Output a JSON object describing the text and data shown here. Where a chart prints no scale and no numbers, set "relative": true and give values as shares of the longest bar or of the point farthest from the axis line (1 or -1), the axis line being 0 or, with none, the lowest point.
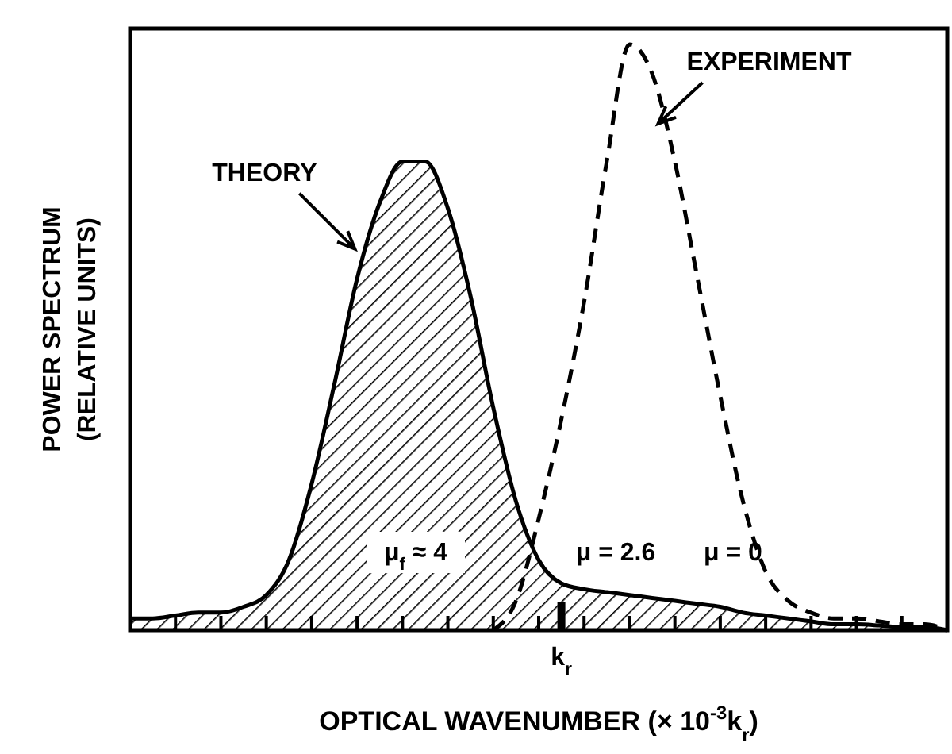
{
  "chart_data": {
    "type": "area",
    "relative": true,
    "xlabel": "OPTICAL WAVENUMBER (× 10$^{-3}$k$_{r}$)",
    "ylabel": "POWER SPECTRUM\n(RELATIVE UNITS)",
    "categories": [
      null,
      null,
      null,
      null,
      null,
      null,
      null,
      null,
      null,
      null,
      null,
      null,
      null,
      null,
      null,
      null,
      null,
      null,
      null,
      null,
      null,
      null,
      null,
      null,
      null,
      null,
      null,
      null,
      null,
      null,
      null,
      null,
      null,
      null,
      null,
      null,
      null
    ],
    "series": [
      {
        "name": "THEORY",
        "color": "#000000",
        "line_style": "solid",
        "values": [
          0.02,
          0.02,
          0.025,
          0.03,
          0.03,
          0.04,
          0.06,
          0.12,
          0.25,
          0.42,
          0.6,
          0.73,
          0.8,
          0.8,
          0.72,
          0.57,
          0.38,
          0.22,
          0.12,
          0.08,
          0.07,
          0.065,
          0.06,
          0.055,
          0.05,
          0.045,
          0.04,
          0.03,
          0.025,
          0.02,
          0.015,
          0.01,
          0.01,
          0.008,
          0.005,
          0.005,
          0
        ]
      },
      {
        "name": "EXPERIMENT",
        "type": "line",
        "color": "#000000",
        "line_style": "dashed",
        "values": [
          null,
          null,
          null,
          null,
          null,
          null,
          null,
          null,
          null,
          null,
          null,
          null,
          null,
          null,
          null,
          null,
          0,
          0.05,
          0.19,
          0.36,
          0.56,
          0.8,
          1.0,
          0.95,
          0.8,
          0.6,
          0.4,
          0.22,
          0.1,
          0.05,
          0.03,
          0.02,
          0.02,
          0.015,
          0.01,
          0.01,
          0
        ]
      }
    ],
    "annotations": [
      "μ$_{f}$ ≈ 4",
      "μ = 2.6",
      "μ = 0",
      "k$_{r}$"
    ]
  }
}
